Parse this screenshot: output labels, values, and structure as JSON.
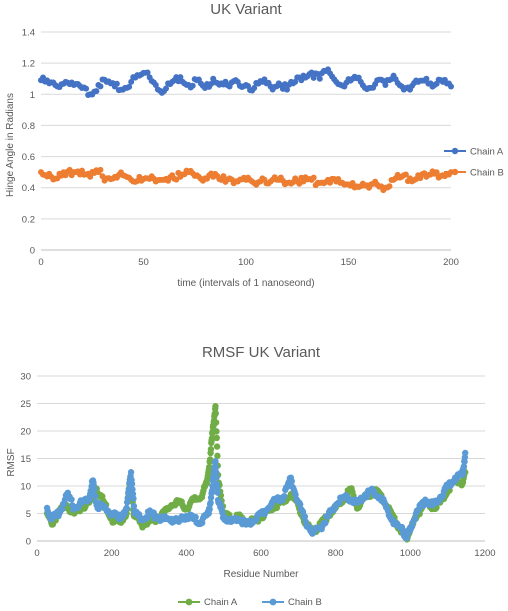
{
  "chart_data": [
    {
      "type": "scatter",
      "title": "UK Variant",
      "xlabel": "time (intervals of 1 nanoseond)",
      "ylabel": "Hinge Angle in Radians",
      "xlim": [
        0,
        200
      ],
      "ylim": [
        0,
        1.4
      ],
      "xticks": [
        0,
        50,
        100,
        150,
        200
      ],
      "yticks": [
        0,
        0.2,
        0.4,
        0.6,
        0.8,
        1,
        1.2,
        1.4
      ],
      "grid": true,
      "legend_position": "right",
      "series": [
        {
          "name": "Chain A",
          "color": "#4472c4",
          "x": [
            0,
            4,
            8,
            12,
            16,
            20,
            24,
            28,
            32,
            36,
            40,
            44,
            48,
            52,
            56,
            60,
            64,
            68,
            72,
            76,
            80,
            84,
            88,
            92,
            96,
            100,
            104,
            108,
            112,
            116,
            120,
            124,
            128,
            132,
            136,
            140,
            144,
            148,
            152,
            156,
            160,
            164,
            168,
            172,
            176,
            180,
            184,
            188,
            192,
            196,
            200
          ],
          "y": [
            1.09,
            1.07,
            1.05,
            1.08,
            1.06,
            1.04,
            1.0,
            1.06,
            1.08,
            1.05,
            1.03,
            1.08,
            1.12,
            1.14,
            1.06,
            1.02,
            1.08,
            1.11,
            1.06,
            1.09,
            1.04,
            1.1,
            1.07,
            1.05,
            1.08,
            1.06,
            1.04,
            1.08,
            1.05,
            1.07,
            1.03,
            1.08,
            1.12,
            1.14,
            1.1,
            1.16,
            1.08,
            1.05,
            1.1,
            1.08,
            1.04,
            1.09,
            1.06,
            1.12,
            1.05,
            1.03,
            1.08,
            1.1,
            1.06,
            1.08,
            1.05
          ]
        },
        {
          "name": "Chain B",
          "color": "#ed7d31",
          "x": [
            0,
            4,
            8,
            12,
            16,
            20,
            24,
            28,
            32,
            36,
            40,
            44,
            48,
            52,
            56,
            60,
            64,
            68,
            72,
            76,
            80,
            84,
            88,
            92,
            96,
            100,
            104,
            108,
            112,
            116,
            120,
            124,
            128,
            132,
            136,
            140,
            144,
            148,
            152,
            156,
            160,
            164,
            168,
            172,
            176,
            180,
            184,
            188,
            192,
            196,
            200
          ],
          "y": [
            0.5,
            0.49,
            0.46,
            0.48,
            0.5,
            0.51,
            0.47,
            0.5,
            0.46,
            0.47,
            0.48,
            0.45,
            0.47,
            0.46,
            0.44,
            0.45,
            0.48,
            0.47,
            0.5,
            0.48,
            0.46,
            0.47,
            0.45,
            0.46,
            0.44,
            0.45,
            0.43,
            0.46,
            0.44,
            0.45,
            0.43,
            0.46,
            0.44,
            0.45,
            0.43,
            0.45,
            0.44,
            0.42,
            0.43,
            0.41,
            0.4,
            0.42,
            0.4,
            0.45,
            0.47,
            0.46,
            0.48,
            0.47,
            0.49,
            0.48,
            0.5
          ]
        }
      ]
    },
    {
      "type": "scatter",
      "title": "RMSF UK Variant",
      "xlabel": "Residue Number",
      "ylabel": "RMSF",
      "xlim": [
        0,
        1200
      ],
      "ylim": [
        0,
        30
      ],
      "xticks": [
        0,
        200,
        400,
        600,
        800,
        1000,
        1200
      ],
      "yticks": [
        0,
        5,
        10,
        15,
        20,
        25,
        30
      ],
      "grid": true,
      "legend_position": "bottom",
      "series": [
        {
          "name": "Chain A",
          "color": "#70ad47",
          "x": [
            27,
            40,
            60,
            80,
            100,
            120,
            140,
            160,
            180,
            200,
            220,
            240,
            250,
            260,
            280,
            300,
            320,
            340,
            360,
            380,
            400,
            420,
            440,
            455,
            465,
            472,
            478,
            485,
            500,
            520,
            540,
            560,
            580,
            600,
            620,
            640,
            660,
            680,
            700,
            720,
            740,
            760,
            780,
            800,
            820,
            840,
            860,
            880,
            900,
            920,
            940,
            960,
            980,
            990,
            1000,
            1020,
            1040,
            1060,
            1080,
            1100,
            1120,
            1140,
            1147
          ],
          "y": [
            5.0,
            3.0,
            5.5,
            6.5,
            5.0,
            6.0,
            7.0,
            9.5,
            7.0,
            4.0,
            3.5,
            5.0,
            11.5,
            4.5,
            3.0,
            3.5,
            4.0,
            5.0,
            6.5,
            7.0,
            6.0,
            7.5,
            8.0,
            10.5,
            16.0,
            21.0,
            24.5,
            12.0,
            5.0,
            4.0,
            4.5,
            3.5,
            3.5,
            4.5,
            5.5,
            6.5,
            7.0,
            8.5,
            6.5,
            3.0,
            1.5,
            3.0,
            4.5,
            6.0,
            7.5,
            9.5,
            6.0,
            8.0,
            9.0,
            8.5,
            6.0,
            3.5,
            1.5,
            0.5,
            2.0,
            5.0,
            7.0,
            6.0,
            7.0,
            9.0,
            11.0,
            10.5,
            12.5
          ]
        },
        {
          "name": "Chain B",
          "color": "#5b9bd5",
          "x": [
            27,
            40,
            60,
            80,
            100,
            120,
            140,
            150,
            160,
            180,
            200,
            220,
            240,
            252,
            262,
            280,
            300,
            320,
            340,
            360,
            380,
            400,
            420,
            440,
            460,
            470,
            478,
            486,
            500,
            520,
            540,
            560,
            580,
            600,
            620,
            640,
            660,
            680,
            700,
            720,
            740,
            760,
            780,
            800,
            820,
            840,
            860,
            880,
            900,
            920,
            940,
            960,
            980,
            990,
            1000,
            1020,
            1040,
            1060,
            1080,
            1100,
            1120,
            1140,
            1147
          ],
          "y": [
            6.0,
            4.0,
            5.0,
            8.5,
            6.0,
            7.0,
            8.0,
            11.0,
            6.5,
            6.0,
            5.0,
            4.0,
            6.0,
            12.5,
            5.0,
            4.0,
            5.0,
            4.5,
            4.0,
            4.0,
            3.5,
            4.5,
            4.0,
            3.5,
            5.0,
            10.0,
            14.5,
            7.0,
            4.5,
            3.5,
            4.0,
            3.0,
            3.5,
            5.0,
            6.0,
            7.5,
            8.0,
            11.5,
            7.0,
            3.5,
            1.5,
            2.5,
            4.5,
            6.5,
            8.0,
            7.5,
            7.0,
            8.5,
            9.0,
            8.0,
            5.5,
            3.0,
            2.0,
            0.5,
            2.5,
            5.5,
            7.5,
            6.5,
            8.0,
            10.0,
            11.5,
            12.0,
            16.0
          ]
        }
      ]
    }
  ]
}
